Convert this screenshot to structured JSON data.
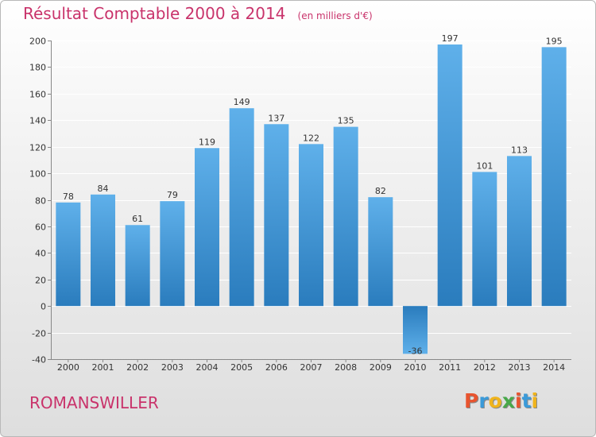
{
  "header": {
    "title": "Résultat Comptable 2000 à 2014",
    "unit": "(en milliers d'€)"
  },
  "footer": {
    "place": "ROMANSWILLER",
    "logo": "Proxiti",
    "logo_colors": [
      "#e8542f",
      "#3a9ad9",
      "#f0b41c",
      "#48a84a",
      "#e8542f",
      "#3a9ad9",
      "#f0b41c"
    ]
  },
  "colors": {
    "title": "#c9336b",
    "bar": "#3b96d6",
    "bar_light": "#5fb0ea",
    "bar_dark": "#2a7cbd"
  },
  "chart_data": {
    "type": "bar",
    "categories": [
      "2000",
      "2001",
      "2002",
      "2003",
      "2004",
      "2005",
      "2006",
      "2007",
      "2008",
      "2009",
      "2010",
      "2011",
      "2012",
      "2013",
      "2014"
    ],
    "values": [
      78,
      84,
      61,
      79,
      119,
      149,
      137,
      122,
      135,
      82,
      -36,
      197,
      101,
      113,
      195
    ],
    "ylim": [
      -40,
      200
    ],
    "yticks": [
      -40,
      -20,
      0,
      20,
      40,
      60,
      80,
      100,
      120,
      140,
      160,
      180,
      200
    ],
    "grid": true,
    "legend": "none"
  }
}
